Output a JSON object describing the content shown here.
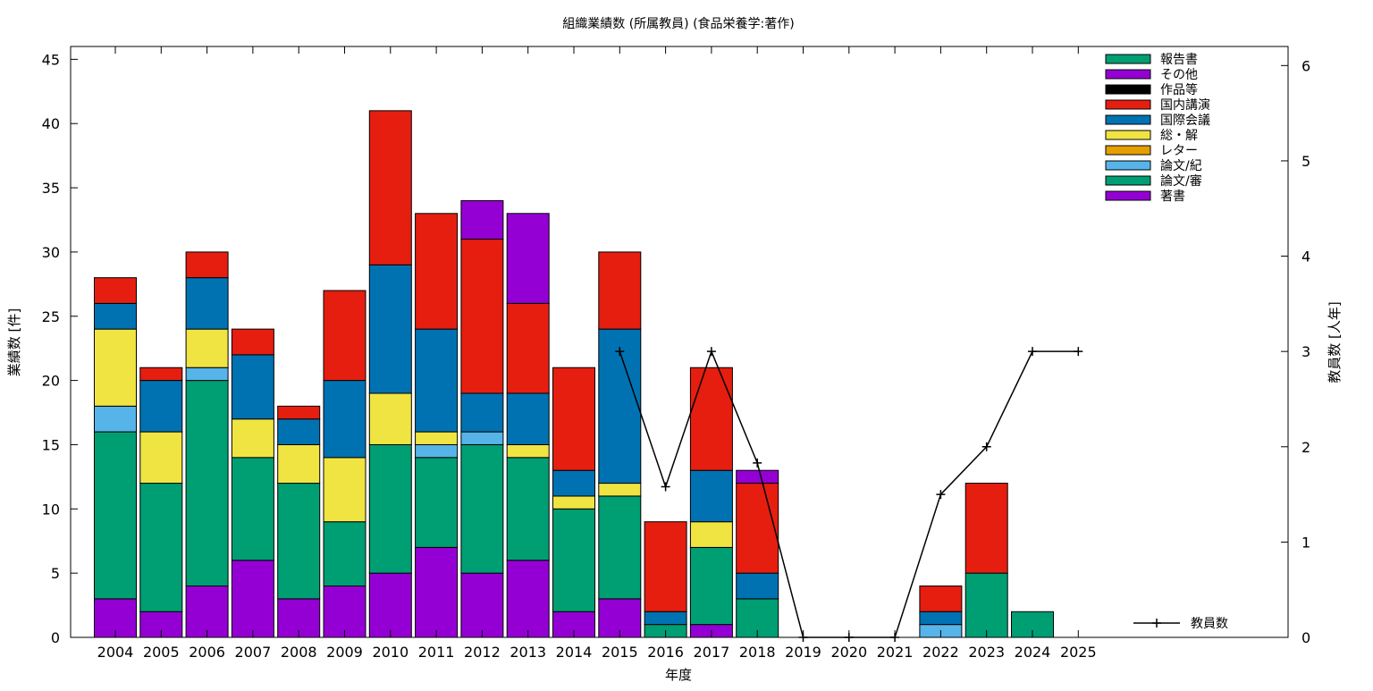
{
  "chart_data": {
    "type": "bar",
    "title": "組織業績数 (所属教員) (食品栄養学:著作)",
    "xlabel": "年度",
    "ylabel": "業績数 [件]",
    "y2label": "教員数 [人年]",
    "ylim": [
      0,
      46
    ],
    "y2lim": [
      0,
      6.2
    ],
    "yticks": [
      "0",
      "5",
      "10",
      "15",
      "20",
      "25",
      "30",
      "35",
      "40",
      "45"
    ],
    "y2ticks": [
      "0",
      "1",
      "2",
      "3",
      "4",
      "5",
      "6"
    ],
    "legend_position": "top-right",
    "grid": false,
    "categories": [
      "2004",
      "2005",
      "2006",
      "2007",
      "2008",
      "2009",
      "2010",
      "2011",
      "2012",
      "2013",
      "2014",
      "2015",
      "2016",
      "2017",
      "2018",
      "2019",
      "2020",
      "2021",
      "2022",
      "2023",
      "2024",
      "2025"
    ],
    "series": [
      {
        "name": "著書",
        "color": "#9400d3",
        "values": [
          3,
          2,
          4,
          6,
          3,
          4,
          5,
          7,
          5,
          6,
          2,
          3,
          0,
          1,
          0,
          0,
          0,
          0,
          0,
          0,
          0,
          0
        ]
      },
      {
        "name": "論文/審",
        "color": "#009e73",
        "values": [
          13,
          10,
          16,
          8,
          9,
          5,
          10,
          7,
          10,
          8,
          8,
          8,
          1,
          6,
          3,
          0,
          0,
          0,
          0,
          5,
          2,
          0
        ]
      },
      {
        "name": "論文/紀",
        "color": "#56b4e9",
        "values": [
          2,
          0,
          1,
          0,
          0,
          0,
          0,
          1,
          1,
          0,
          0,
          0,
          0,
          0,
          0,
          0,
          0,
          0,
          1,
          0,
          0,
          0
        ]
      },
      {
        "name": "レター",
        "color": "#e69f00",
        "values": [
          0,
          0,
          0,
          0,
          0,
          0,
          0,
          0,
          0,
          0,
          0,
          0,
          0,
          0,
          0,
          0,
          0,
          0,
          0,
          0,
          0,
          0
        ]
      },
      {
        "name": "総・解",
        "color": "#f0e442",
        "values": [
          6,
          4,
          3,
          3,
          3,
          5,
          4,
          1,
          0,
          1,
          1,
          1,
          0,
          2,
          0,
          0,
          0,
          0,
          0,
          0,
          0,
          0
        ]
      },
      {
        "name": "国際会議",
        "color": "#0072b2",
        "values": [
          2,
          4,
          4,
          5,
          2,
          6,
          10,
          8,
          3,
          4,
          2,
          12,
          1,
          4,
          2,
          0,
          0,
          0,
          1,
          0,
          0,
          0
        ]
      },
      {
        "name": "国内講演",
        "color": "#e51e10",
        "values": [
          2,
          1,
          2,
          2,
          1,
          7,
          12,
          9,
          12,
          7,
          8,
          6,
          7,
          8,
          7,
          0,
          0,
          0,
          2,
          7,
          0,
          0
        ]
      },
      {
        "name": "作品等",
        "color": "#000000",
        "values": [
          0,
          0,
          0,
          0,
          0,
          0,
          0,
          0,
          0,
          0,
          0,
          0,
          0,
          0,
          0,
          0,
          0,
          0,
          0,
          0,
          0,
          0
        ]
      },
      {
        "name": "その他",
        "color": "#9400d3",
        "values": [
          0,
          0,
          0,
          0,
          0,
          0,
          0,
          0,
          3,
          7,
          0,
          0,
          0,
          0,
          1,
          0,
          0,
          0,
          0,
          0,
          0,
          0
        ]
      },
      {
        "name": "報告書",
        "color": "#009e73",
        "values": [
          0,
          0,
          0,
          0,
          0,
          0,
          0,
          0,
          0,
          0,
          0,
          0,
          0,
          0,
          0,
          0,
          0,
          0,
          0,
          0,
          0,
          0
        ]
      }
    ],
    "line_series": {
      "name": "教員数",
      "color": "#000000",
      "axis": "y2",
      "x": [
        "2015",
        "2016",
        "2017",
        "2018",
        "2019",
        "2020",
        "2021",
        "2022",
        "2023",
        "2024",
        "2025"
      ],
      "values": [
        3,
        1.58,
        3,
        1.83,
        0,
        0,
        0,
        1.5,
        2,
        3,
        3
      ]
    }
  }
}
